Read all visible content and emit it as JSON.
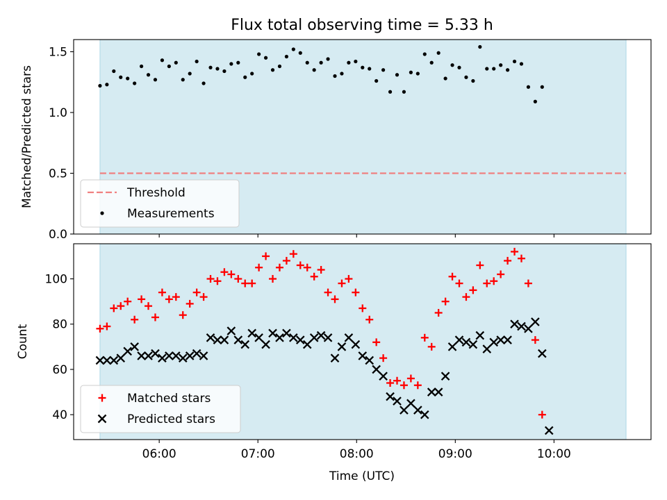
{
  "chart_data": {
    "title": "Flux total observing time = 5.33 h",
    "xlabel": "Time (UTC)",
    "x_unit": "hours UTC",
    "x_ticks": [
      "06:00",
      "07:00",
      "08:00",
      "09:00",
      "10:00"
    ],
    "x_tick_values": [
      6,
      7,
      8,
      9,
      10
    ],
    "xlim": [
      5.133,
      10.983
    ],
    "shaded_interval": [
      5.4,
      10.73
    ],
    "colors": {
      "shade": "#add8e6",
      "threshold": "#f08080",
      "matched": "#ff0000",
      "predicted": "#000000",
      "measurement": "#000000"
    },
    "panels": [
      {
        "type": "scatter",
        "ylabel": "Matched/Predicted stars",
        "ylim": [
          0,
          1.6
        ],
        "y_ticks": [
          "0.0",
          "0.5",
          "1.0",
          "1.5"
        ],
        "y_tick_values": [
          0,
          0.5,
          1.0,
          1.5
        ],
        "legend_position": "lower-left",
        "series": [
          {
            "name": "Threshold",
            "kind": "dashed-line",
            "y": 0.5,
            "x_range": [
              5.4,
              10.73
            ]
          },
          {
            "name": "Measurements",
            "kind": "points",
            "x": [
              5.4,
              5.47,
              5.54,
              5.61,
              5.68,
              5.75,
              5.82,
              5.89,
              5.96,
              6.03,
              6.1,
              6.17,
              6.24,
              6.31,
              6.38,
              6.45,
              6.52,
              6.59,
              6.66,
              6.73,
              6.8,
              6.87,
              6.94,
              7.01,
              7.08,
              7.15,
              7.22,
              7.29,
              7.36,
              7.43,
              7.5,
              7.57,
              7.64,
              7.71,
              7.78,
              7.85,
              7.92,
              7.99,
              8.06,
              8.13,
              8.2,
              8.27,
              8.34,
              8.41,
              8.48,
              8.55,
              8.62,
              8.69,
              8.76,
              8.83,
              8.9,
              8.97,
              9.04,
              9.11,
              9.18,
              9.25,
              9.32,
              9.39,
              9.46,
              9.53,
              9.6,
              9.67,
              9.74,
              9.81,
              9.88,
              9.95,
              10.02,
              10.09,
              10.16,
              10.23,
              10.3,
              10.37,
              10.44,
              10.51,
              10.58,
              10.65,
              10.73
            ],
            "y": [
              1.22,
              1.23,
              1.34,
              1.29,
              1.28,
              1.24,
              1.38,
              1.31,
              1.27,
              1.43,
              1.38,
              1.41,
              1.27,
              1.32,
              1.42,
              1.24,
              1.37,
              1.36,
              1.34,
              1.4,
              1.41,
              1.29,
              1.32,
              1.48,
              1.45,
              1.35,
              1.38,
              1.46,
              1.52,
              1.49,
              1.41,
              1.35,
              1.41,
              1.44,
              1.3,
              1.32,
              1.41,
              1.42,
              1.37,
              1.36,
              1.26,
              1.35,
              1.17,
              1.31,
              1.17,
              1.33,
              1.32,
              1.48,
              1.41,
              1.49,
              1.28,
              1.39,
              1.37,
              1.29,
              1.26,
              1.54,
              1.36,
              1.36,
              1.39,
              1.35,
              1.42,
              1.4,
              1.21,
              1.09,
              1.21,
              null,
              null,
              null,
              null,
              null,
              null,
              null,
              null,
              null,
              null,
              null,
              null
            ]
          }
        ]
      },
      {
        "type": "scatter",
        "ylabel": "Count",
        "ylim": [
          29,
          115.5
        ],
        "y_ticks": [
          "40",
          "60",
          "80",
          "100"
        ],
        "y_tick_values": [
          40,
          60,
          80,
          100
        ],
        "legend_position": "lower-left",
        "series": [
          {
            "name": "Matched stars",
            "kind": "plus",
            "x": [
              5.4,
              5.47,
              5.54,
              5.61,
              5.68,
              5.75,
              5.82,
              5.89,
              5.96,
              6.03,
              6.1,
              6.17,
              6.24,
              6.31,
              6.38,
              6.45,
              6.52,
              6.59,
              6.66,
              6.73,
              6.8,
              6.87,
              6.94,
              7.01,
              7.08,
              7.15,
              7.22,
              7.29,
              7.36,
              7.43,
              7.5,
              7.57,
              7.64,
              7.71,
              7.78,
              7.85,
              7.92,
              7.99,
              8.06,
              8.13,
              8.2,
              8.27,
              8.34,
              8.41,
              8.48,
              8.55,
              8.62,
              8.69,
              8.76,
              8.83,
              8.9,
              8.97,
              9.04,
              9.11,
              9.18,
              9.25,
              9.32,
              9.39,
              9.46,
              9.53,
              9.6,
              9.67,
              9.74,
              9.81,
              9.88,
              9.95,
              10.02,
              10.09,
              10.16,
              10.23,
              10.3,
              10.37,
              10.44,
              10.51,
              10.58,
              10.65,
              10.73
            ],
            "y": [
              78,
              79,
              87,
              88,
              90,
              82,
              91,
              88,
              83,
              94,
              91,
              92,
              84,
              89,
              94,
              92,
              100,
              99,
              103,
              102,
              100,
              98,
              98,
              105,
              110,
              100,
              105,
              108,
              111,
              106,
              105,
              101,
              104,
              94,
              91,
              98,
              100,
              94,
              87,
              82,
              72,
              65,
              54,
              55,
              53,
              56,
              53,
              74,
              70,
              85,
              90,
              101,
              98,
              92,
              95,
              106,
              98,
              99,
              102,
              108,
              112,
              109,
              98,
              73,
              40,
              null,
              null,
              null,
              null,
              null,
              null,
              null,
              null,
              null,
              null,
              null,
              null
            ]
          },
          {
            "name": "Predicted stars",
            "kind": "x",
            "x": [
              5.4,
              5.47,
              5.54,
              5.61,
              5.68,
              5.75,
              5.82,
              5.89,
              5.96,
              6.03,
              6.1,
              6.17,
              6.24,
              6.31,
              6.38,
              6.45,
              6.52,
              6.59,
              6.66,
              6.73,
              6.8,
              6.87,
              6.94,
              7.01,
              7.08,
              7.15,
              7.22,
              7.29,
              7.36,
              7.43,
              7.5,
              7.57,
              7.64,
              7.71,
              7.78,
              7.85,
              7.92,
              7.99,
              8.06,
              8.13,
              8.2,
              8.27,
              8.34,
              8.41,
              8.48,
              8.55,
              8.62,
              8.69,
              8.76,
              8.83,
              8.9,
              8.97,
              9.04,
              9.11,
              9.18,
              9.25,
              9.32,
              9.39,
              9.46,
              9.53,
              9.6,
              9.67,
              9.74,
              9.81,
              9.88,
              9.95,
              10.02,
              10.09,
              10.16,
              10.23,
              10.3,
              10.37,
              10.44,
              10.51,
              10.58,
              10.65,
              10.73
            ],
            "y": [
              64,
              64,
              64,
              65,
              68,
              70,
              66,
              66,
              67,
              65,
              66,
              66,
              65,
              66,
              67,
              66,
              74,
              73,
              73,
              77,
              73,
              71,
              76,
              74,
              71,
              76,
              74,
              76,
              74,
              73,
              71,
              74,
              75,
              74,
              65,
              70,
              74,
              71,
              66,
              64,
              60,
              57,
              48,
              46,
              42,
              45,
              42,
              40,
              50,
              50,
              57,
              70,
              73,
              72,
              71,
              75,
              69,
              72,
              73,
              73,
              80,
              79,
              78,
              81,
              67,
              33,
              null,
              null,
              null,
              null,
              null,
              null,
              null,
              null,
              null,
              null,
              null
            ]
          }
        ]
      }
    ]
  }
}
